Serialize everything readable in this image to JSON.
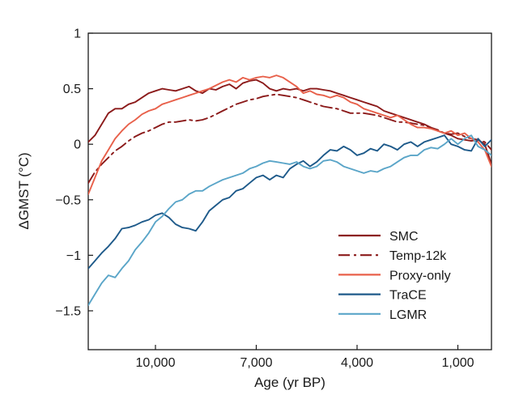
{
  "chart_data": {
    "type": "line",
    "title": "",
    "xlabel": "Age (yr BP)",
    "ylabel": "ΔGMST (°C)",
    "xlim": [
      12000,
      0
    ],
    "ylim": [
      -1.85,
      1.0
    ],
    "x_reversed": true,
    "xticks": [
      10000,
      7000,
      4000,
      1000
    ],
    "xtick_labels": [
      "10,000",
      "7,000",
      "4,000",
      "1,000"
    ],
    "yticks": [
      1,
      0.5,
      0,
      -0.5,
      -1,
      -1.5
    ],
    "ytick_labels": [
      "1",
      "0.5",
      "0",
      "−0.5",
      "−1",
      "−1.5"
    ],
    "grid": false,
    "legend_position": "bottom-right",
    "series": [
      {
        "name": "SMC",
        "color": "#8b1a1a",
        "dash": "solid",
        "x": [
          12000,
          11800,
          11600,
          11400,
          11200,
          11000,
          10800,
          10600,
          10400,
          10200,
          10000,
          9800,
          9600,
          9400,
          9200,
          9000,
          8800,
          8600,
          8400,
          8200,
          8000,
          7800,
          7600,
          7400,
          7200,
          7000,
          6800,
          6600,
          6400,
          6200,
          6000,
          5800,
          5600,
          5400,
          5200,
          5000,
          4800,
          4600,
          4400,
          4200,
          4000,
          3800,
          3600,
          3400,
          3200,
          3000,
          2800,
          2600,
          2400,
          2200,
          2000,
          1800,
          1600,
          1400,
          1200,
          1000,
          800,
          600,
          400,
          200,
          0
        ],
        "y": [
          0.02,
          0.08,
          0.18,
          0.28,
          0.32,
          0.32,
          0.36,
          0.38,
          0.42,
          0.46,
          0.48,
          0.5,
          0.49,
          0.48,
          0.5,
          0.52,
          0.48,
          0.46,
          0.5,
          0.49,
          0.52,
          0.54,
          0.5,
          0.55,
          0.57,
          0.58,
          0.55,
          0.5,
          0.48,
          0.5,
          0.49,
          0.5,
          0.48,
          0.5,
          0.5,
          0.49,
          0.48,
          0.46,
          0.44,
          0.42,
          0.4,
          0.38,
          0.36,
          0.34,
          0.3,
          0.28,
          0.26,
          0.24,
          0.22,
          0.2,
          0.18,
          0.15,
          0.12,
          0.1,
          0.08,
          0.05,
          0.04,
          0.03,
          0.04,
          0.0,
          -0.18
        ]
      },
      {
        "name": "Temp-12k",
        "color": "#8b1a1a",
        "dash": "dashdot",
        "x": [
          12000,
          11800,
          11600,
          11400,
          11200,
          11000,
          10800,
          10600,
          10400,
          10200,
          10000,
          9800,
          9600,
          9400,
          9200,
          9000,
          8800,
          8600,
          8400,
          8200,
          8000,
          7800,
          7600,
          7400,
          7200,
          7000,
          6800,
          6600,
          6400,
          6200,
          6000,
          5800,
          5600,
          5400,
          5200,
          5000,
          4800,
          4600,
          4400,
          4200,
          4000,
          3800,
          3600,
          3400,
          3200,
          3000,
          2800,
          2600,
          2400,
          2200,
          2000,
          1800,
          1600,
          1400,
          1200,
          1000,
          800,
          600,
          400,
          200,
          0
        ],
        "y": [
          -0.35,
          -0.25,
          -0.18,
          -0.12,
          -0.06,
          -0.02,
          0.03,
          0.07,
          0.1,
          0.12,
          0.15,
          0.18,
          0.2,
          0.2,
          0.21,
          0.22,
          0.21,
          0.22,
          0.24,
          0.27,
          0.3,
          0.33,
          0.36,
          0.38,
          0.4,
          0.41,
          0.43,
          0.44,
          0.45,
          0.44,
          0.43,
          0.42,
          0.4,
          0.38,
          0.36,
          0.34,
          0.33,
          0.32,
          0.3,
          0.28,
          0.28,
          0.28,
          0.27,
          0.26,
          0.24,
          0.22,
          0.2,
          0.2,
          0.19,
          0.18,
          0.17,
          0.15,
          0.13,
          0.1,
          0.09,
          0.1,
          0.07,
          0.05,
          0.04,
          0.02,
          -0.05
        ]
      },
      {
        "name": "Proxy-only",
        "color": "#e8604a",
        "dash": "solid",
        "x": [
          12000,
          11800,
          11600,
          11400,
          11200,
          11000,
          10800,
          10600,
          10400,
          10200,
          10000,
          9800,
          9600,
          9400,
          9200,
          9000,
          8800,
          8600,
          8400,
          8200,
          8000,
          7800,
          7600,
          7400,
          7200,
          7000,
          6800,
          6600,
          6400,
          6200,
          6000,
          5800,
          5600,
          5400,
          5200,
          5000,
          4800,
          4600,
          4400,
          4200,
          4000,
          3800,
          3600,
          3400,
          3200,
          3000,
          2800,
          2600,
          2400,
          2200,
          2000,
          1800,
          1600,
          1400,
          1200,
          1000,
          800,
          600,
          400,
          200,
          0
        ],
        "y": [
          -0.45,
          -0.3,
          -0.15,
          -0.05,
          0.05,
          0.12,
          0.18,
          0.22,
          0.27,
          0.3,
          0.32,
          0.36,
          0.38,
          0.4,
          0.42,
          0.44,
          0.46,
          0.48,
          0.5,
          0.53,
          0.56,
          0.58,
          0.56,
          0.6,
          0.58,
          0.6,
          0.61,
          0.6,
          0.62,
          0.6,
          0.56,
          0.52,
          0.46,
          0.48,
          0.45,
          0.44,
          0.42,
          0.44,
          0.42,
          0.38,
          0.36,
          0.32,
          0.3,
          0.28,
          0.26,
          0.24,
          0.26,
          0.22,
          0.18,
          0.15,
          0.15,
          0.14,
          0.12,
          0.1,
          0.12,
          0.08,
          0.1,
          0.05,
          0.02,
          -0.05,
          -0.2
        ]
      },
      {
        "name": "TraCE",
        "color": "#1e5a8a",
        "dash": "solid",
        "x": [
          12000,
          11800,
          11600,
          11400,
          11200,
          11000,
          10800,
          10600,
          10400,
          10200,
          10000,
          9800,
          9600,
          9400,
          9200,
          9000,
          8800,
          8600,
          8400,
          8200,
          8000,
          7800,
          7600,
          7400,
          7200,
          7000,
          6800,
          6600,
          6400,
          6200,
          6000,
          5800,
          5600,
          5400,
          5200,
          5000,
          4800,
          4600,
          4400,
          4200,
          4000,
          3800,
          3600,
          3400,
          3200,
          3000,
          2800,
          2600,
          2400,
          2200,
          2000,
          1800,
          1600,
          1400,
          1200,
          1000,
          800,
          600,
          400,
          200,
          0
        ],
        "y": [
          -1.12,
          -1.05,
          -0.98,
          -0.92,
          -0.85,
          -0.76,
          -0.75,
          -0.73,
          -0.7,
          -0.68,
          -0.64,
          -0.62,
          -0.66,
          -0.72,
          -0.75,
          -0.76,
          -0.78,
          -0.7,
          -0.6,
          -0.55,
          -0.5,
          -0.48,
          -0.42,
          -0.4,
          -0.35,
          -0.3,
          -0.28,
          -0.32,
          -0.28,
          -0.3,
          -0.22,
          -0.18,
          -0.15,
          -0.2,
          -0.16,
          -0.1,
          -0.05,
          -0.06,
          -0.02,
          -0.05,
          -0.1,
          -0.08,
          -0.04,
          -0.06,
          0.0,
          -0.02,
          -0.05,
          0.0,
          0.02,
          -0.02,
          0.02,
          0.04,
          0.06,
          0.08,
          0.0,
          -0.02,
          -0.05,
          -0.06,
          0.05,
          -0.02,
          0.04
        ]
      },
      {
        "name": "LGMR",
        "color": "#5aa5c8",
        "dash": "solid",
        "x": [
          12000,
          11800,
          11600,
          11400,
          11200,
          11000,
          10800,
          10600,
          10400,
          10200,
          10000,
          9800,
          9600,
          9400,
          9200,
          9000,
          8800,
          8600,
          8400,
          8200,
          8000,
          7800,
          7600,
          7400,
          7200,
          7000,
          6800,
          6600,
          6400,
          6200,
          6000,
          5800,
          5600,
          5400,
          5200,
          5000,
          4800,
          4600,
          4400,
          4200,
          4000,
          3800,
          3600,
          3400,
          3200,
          3000,
          2800,
          2600,
          2400,
          2200,
          2000,
          1800,
          1600,
          1400,
          1200,
          1000,
          800,
          600,
          400,
          200,
          0
        ],
        "y": [
          -1.45,
          -1.35,
          -1.25,
          -1.18,
          -1.2,
          -1.12,
          -1.05,
          -0.95,
          -0.88,
          -0.8,
          -0.7,
          -0.65,
          -0.58,
          -0.52,
          -0.5,
          -0.45,
          -0.42,
          -0.42,
          -0.38,
          -0.35,
          -0.32,
          -0.3,
          -0.28,
          -0.26,
          -0.22,
          -0.2,
          -0.17,
          -0.15,
          -0.16,
          -0.17,
          -0.18,
          -0.16,
          -0.2,
          -0.22,
          -0.2,
          -0.15,
          -0.14,
          -0.16,
          -0.2,
          -0.22,
          -0.24,
          -0.26,
          -0.24,
          -0.25,
          -0.22,
          -0.2,
          -0.16,
          -0.12,
          -0.1,
          -0.1,
          -0.05,
          -0.03,
          -0.04,
          0.0,
          0.05,
          0.0,
          0.05,
          0.08,
          -0.02,
          -0.05,
          -0.1
        ]
      }
    ]
  }
}
